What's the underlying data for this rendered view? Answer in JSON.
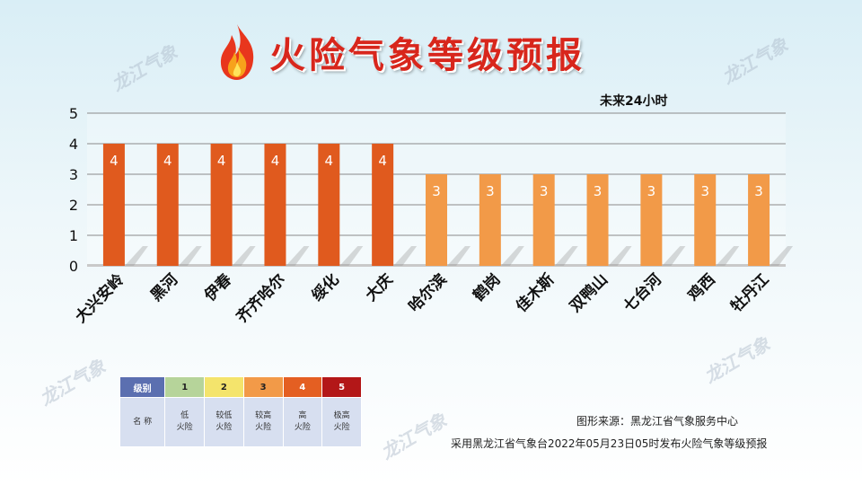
{
  "title": "火险气象等级预报",
  "subtitle": "未来24小时",
  "watermark_text": "龙江气象",
  "chart_data": {
    "type": "bar",
    "categories": [
      "大兴安岭",
      "黑河",
      "伊春",
      "齐齐哈尔",
      "绥化",
      "大庆",
      "哈尔滨",
      "鹤岗",
      "佳木斯",
      "双鸭山",
      "七台河",
      "鸡西",
      "牡丹江"
    ],
    "values": [
      4,
      4,
      4,
      4,
      4,
      4,
      3,
      3,
      3,
      3,
      3,
      3,
      3
    ],
    "ylim": [
      0,
      5
    ],
    "yticks": [
      0,
      1,
      2,
      3,
      4,
      5
    ],
    "grid": true,
    "data_labels": true,
    "level_colors": {
      "3": "#f29a48",
      "4": "#e05a1e"
    }
  },
  "legend": {
    "header_label": "级别",
    "name_label": "名 称",
    "levels": [
      {
        "level": "1",
        "name_line1": "低",
        "name_line2": "火险",
        "color": "#b6d49a"
      },
      {
        "level": "2",
        "name_line1": "较低",
        "name_line2": "火险",
        "color": "#f4e46c"
      },
      {
        "level": "3",
        "name_line1": "较高",
        "name_line2": "火险",
        "color": "#f29a48"
      },
      {
        "level": "4",
        "name_line1": "高",
        "name_line2": "火险",
        "color": "#e45f22"
      },
      {
        "level": "5",
        "name_line1": "极高",
        "name_line2": "火险",
        "color": "#b31718"
      }
    ],
    "header_color": "#5b6fb0"
  },
  "source_text": "图形来源：黑龙江省气象服务中心",
  "note_text": "采用黑龙江省气象台2022年05月23日05时发布火险气象等级预报"
}
